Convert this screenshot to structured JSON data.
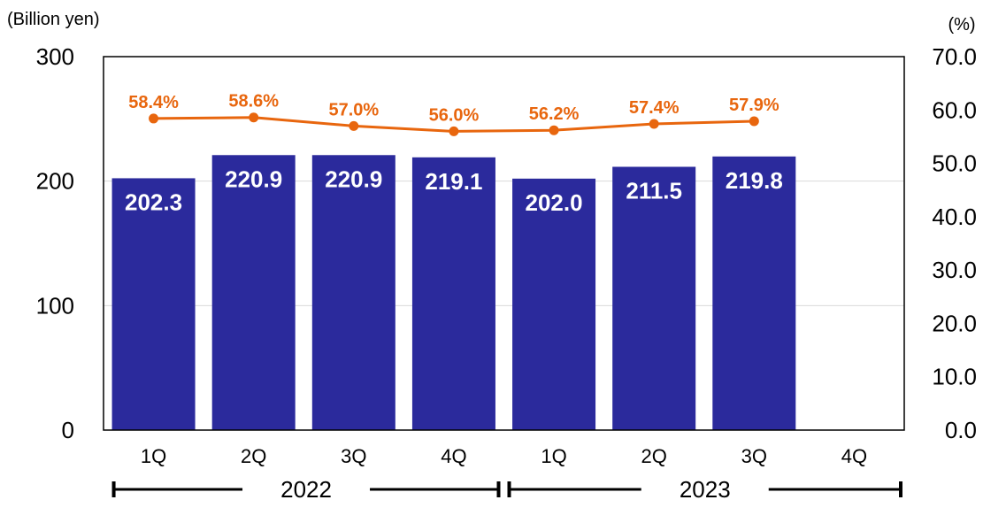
{
  "chart_data": {
    "type": "bar",
    "left_unit_label": "(Billion yen)",
    "right_unit_label": "(%)",
    "categories": [
      "1Q",
      "2Q",
      "3Q",
      "4Q",
      "1Q",
      "2Q",
      "3Q",
      "4Q"
    ],
    "groups": [
      {
        "label": "2022",
        "categories": [
          "1Q",
          "2Q",
          "3Q",
          "4Q"
        ]
      },
      {
        "label": "2023",
        "categories": [
          "1Q",
          "2Q",
          "3Q",
          "4Q"
        ]
      }
    ],
    "series": [
      {
        "type": "bar",
        "axis": "left",
        "values": [
          202.3,
          220.9,
          220.9,
          219.1,
          202.0,
          211.5,
          219.8,
          null
        ],
        "labels": [
          "202.3",
          "220.9",
          "220.9",
          "219.1",
          "202.0",
          "211.5",
          "219.8",
          ""
        ],
        "color": "#2B2A9C"
      },
      {
        "type": "line",
        "axis": "right",
        "values": [
          58.4,
          58.6,
          57.0,
          56.0,
          56.2,
          57.4,
          57.9,
          null
        ],
        "labels": [
          "58.4%",
          "58.6%",
          "57.0%",
          "56.0%",
          "56.2%",
          "57.4%",
          "57.9%",
          ""
        ],
        "color": "#E8660E"
      }
    ],
    "y_left": {
      "min": 0,
      "max": 300,
      "ticks": [
        0,
        100,
        200,
        300
      ],
      "tick_labels": [
        "0",
        "100",
        "200",
        "300"
      ]
    },
    "y_right": {
      "min": 0,
      "max": 70,
      "ticks": [
        0,
        10,
        20,
        30,
        40,
        50,
        60,
        70
      ],
      "tick_labels": [
        "0.0",
        "10.0",
        "20.0",
        "30.0",
        "40.0",
        "50.0",
        "60.0",
        "70.0"
      ]
    },
    "grid": true,
    "legend": "none",
    "gridline_color": "#D9D9D9",
    "frame_color": "#000000"
  }
}
